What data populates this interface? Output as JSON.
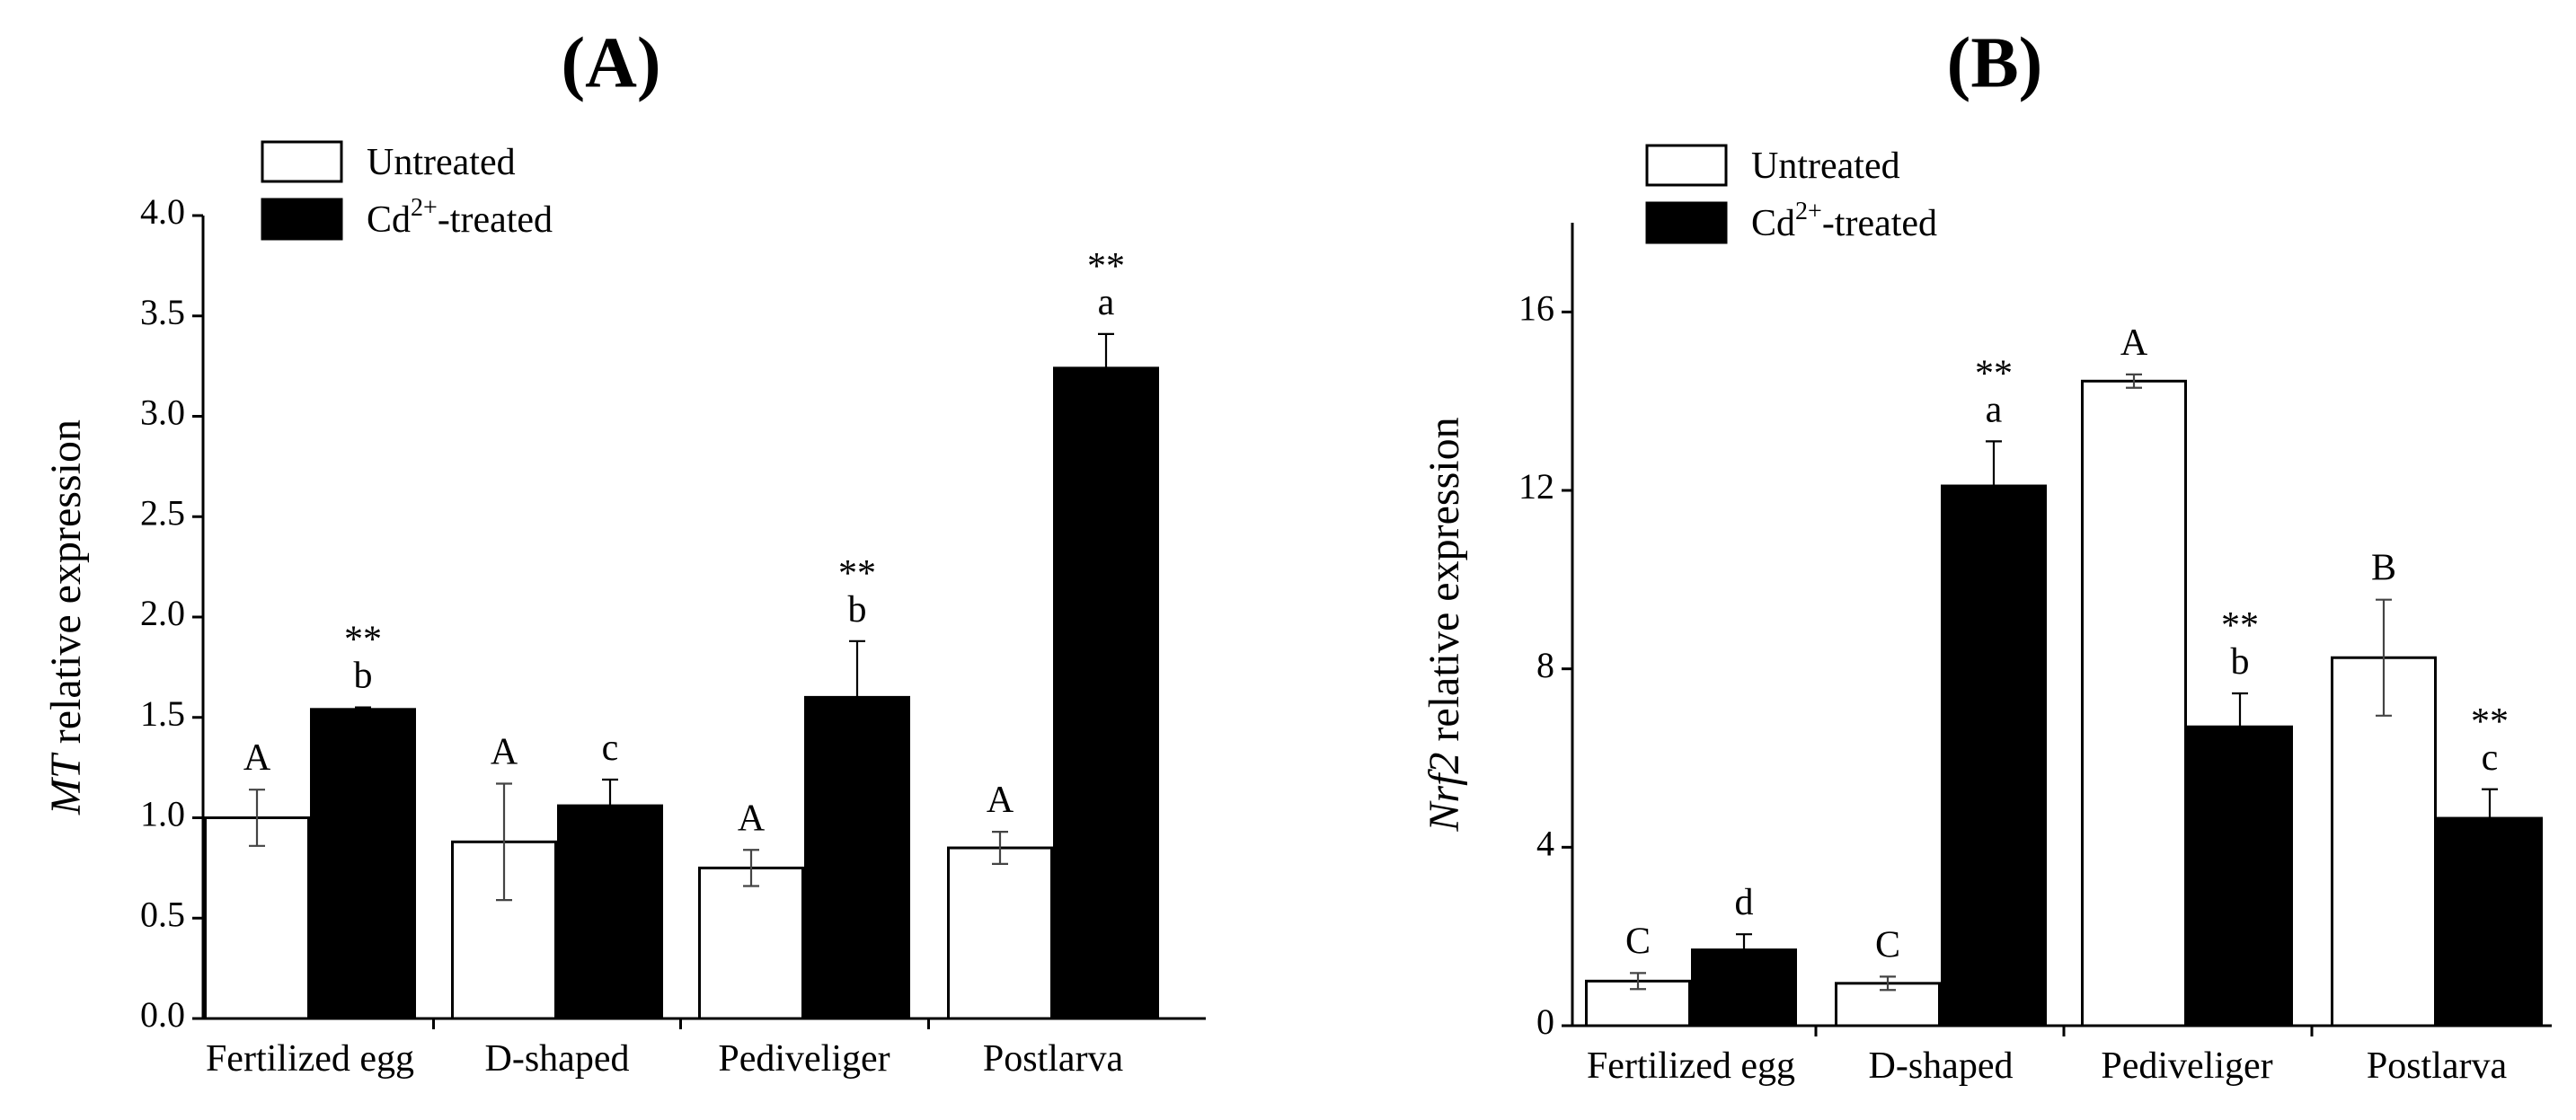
{
  "chart_data": [
    {
      "type": "bar",
      "panel_label": "(A)",
      "categories": [
        "Fertilized egg",
        "D-shaped",
        "Pediveliger",
        "Postlarva"
      ],
      "ylabel": {
        "italic": "MT",
        "rest": " relative expression"
      },
      "xlabel": "",
      "ylim": [
        0,
        4.0
      ],
      "yticks": [
        0,
        0.5,
        1.0,
        1.5,
        2.0,
        2.5,
        3.0,
        3.5,
        4.0
      ],
      "ytick_labels": [
        "0.0",
        "0.5",
        "1.0",
        "1.5",
        "2.0",
        "2.5",
        "3.0",
        "3.5",
        "4.0"
      ],
      "legend": {
        "position": "top-left",
        "entries": [
          {
            "text": "Untreated",
            "sup": "",
            "after": "",
            "color": "#ffffff"
          },
          {
            "text": "Cd",
            "sup": "2+",
            "after": "-treated",
            "color": "#000000"
          }
        ]
      },
      "series": [
        {
          "name": "Untreated",
          "color": "#ffffff",
          "values": [
            1.0,
            0.88,
            0.75,
            0.85
          ],
          "errors": [
            0.14,
            0.29,
            0.09,
            0.08
          ],
          "stars": [
            "",
            "",
            "",
            ""
          ],
          "letters": [
            "A",
            "A",
            "A",
            "A"
          ]
        },
        {
          "name": "Cd2+-treated",
          "color": "#000000",
          "values": [
            1.54,
            1.06,
            1.6,
            3.24
          ],
          "errors": [
            0.01,
            0.13,
            0.28,
            0.17
          ],
          "stars": [
            "**",
            "",
            "**",
            "**"
          ],
          "letters": [
            "b",
            "c",
            "b",
            "a"
          ]
        }
      ]
    },
    {
      "type": "bar",
      "panel_label": "(B)",
      "categories": [
        "Fertilized egg",
        "D-shaped",
        "Pediveliger",
        "Postlarva"
      ],
      "ylabel": {
        "italic": "Nrf2",
        "rest": " relative expression"
      },
      "xlabel": "",
      "ylim": [
        0,
        18
      ],
      "yticks": [
        0,
        4,
        8,
        12,
        16
      ],
      "ytick_labels": [
        "0",
        "4",
        "8",
        "12",
        "16"
      ],
      "legend": {
        "position": "top-left",
        "entries": [
          {
            "text": "Untreated",
            "sup": "",
            "after": "",
            "color": "#ffffff"
          },
          {
            "text": "Cd",
            "sup": "2+",
            "after": "-treated",
            "color": "#000000"
          }
        ]
      },
      "series": [
        {
          "name": "Untreated",
          "color": "#ffffff",
          "values": [
            1.0,
            0.95,
            14.45,
            8.25
          ],
          "errors": [
            0.18,
            0.15,
            0.15,
            1.3
          ],
          "stars": [
            "",
            "",
            "",
            ""
          ],
          "letters": [
            "C",
            "C",
            "A",
            "B"
          ]
        },
        {
          "name": "Cd2+-treated",
          "color": "#000000",
          "values": [
            1.7,
            12.1,
            6.7,
            4.65
          ],
          "errors": [
            0.35,
            1.0,
            0.75,
            0.65
          ],
          "stars": [
            "",
            "**",
            "**",
            "**"
          ],
          "letters": [
            "d",
            "a",
            "b",
            "c"
          ]
        }
      ]
    }
  ]
}
